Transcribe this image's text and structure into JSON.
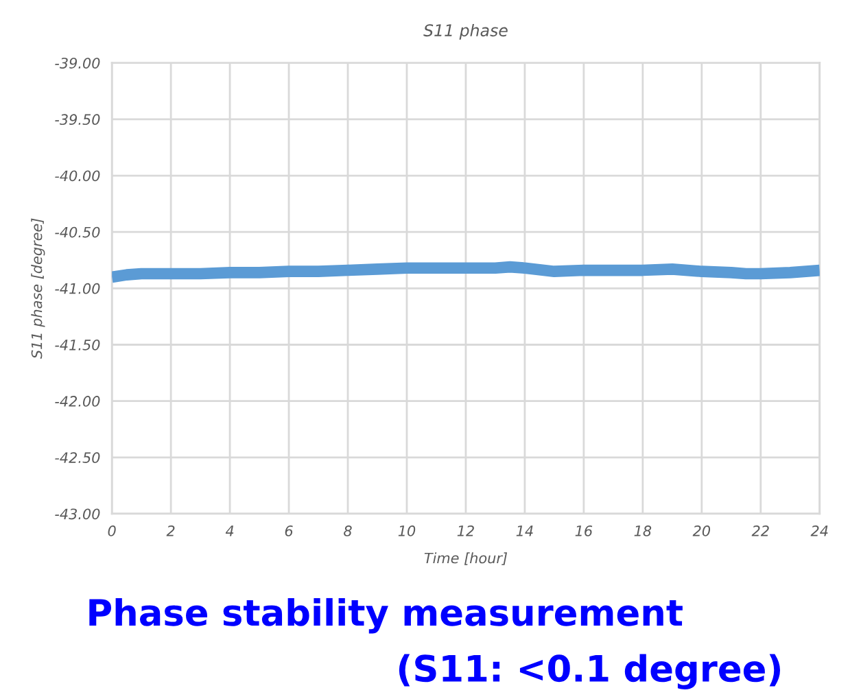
{
  "chart_data": {
    "type": "line",
    "title": "S11 phase",
    "xlabel": "Time [hour]",
    "ylabel": "S11 phase [degree]",
    "x": [
      0,
      0.5,
      1,
      2,
      3,
      4,
      5,
      6,
      7,
      8,
      9,
      10,
      11,
      12,
      13,
      13.5,
      14,
      15,
      16,
      17,
      18,
      19,
      20,
      21,
      21.5,
      22,
      23,
      24
    ],
    "series": [
      {
        "color": "#5b9bd5",
        "values": [
          -40.9,
          -40.88,
          -40.87,
          -40.87,
          -40.87,
          -40.86,
          -40.86,
          -40.85,
          -40.85,
          -40.84,
          -40.83,
          -40.82,
          -40.82,
          -40.82,
          -40.82,
          -40.81,
          -40.82,
          -40.85,
          -40.84,
          -40.84,
          -40.84,
          -40.83,
          -40.85,
          -40.86,
          -40.87,
          -40.87,
          -40.86,
          -40.84
        ]
      }
    ],
    "xlim": [
      0,
      24
    ],
    "xticks": [
      0,
      2,
      4,
      6,
      8,
      10,
      12,
      14,
      16,
      18,
      20,
      22,
      24
    ],
    "ylim": [
      -43,
      -39
    ],
    "yticks": [
      {
        "value": -43,
        "label": "-43.00"
      },
      {
        "value": -42.5,
        "label": "-42.50"
      },
      {
        "value": -42,
        "label": "-42.00"
      },
      {
        "value": -41.5,
        "label": "-41.50"
      },
      {
        "value": -41,
        "label": "-41.00"
      },
      {
        "value": -40.5,
        "label": "-40.50"
      },
      {
        "value": -40,
        "label": "-40.00"
      },
      {
        "value": -39.5,
        "label": "-39.50"
      },
      {
        "value": -39,
        "label": "-39.00"
      }
    ],
    "grid": true,
    "legend": false,
    "marker": "none",
    "line_style": "solid",
    "annotations": [
      "Phase stability measurement",
      "(S11: <0.1 degree)"
    ]
  }
}
